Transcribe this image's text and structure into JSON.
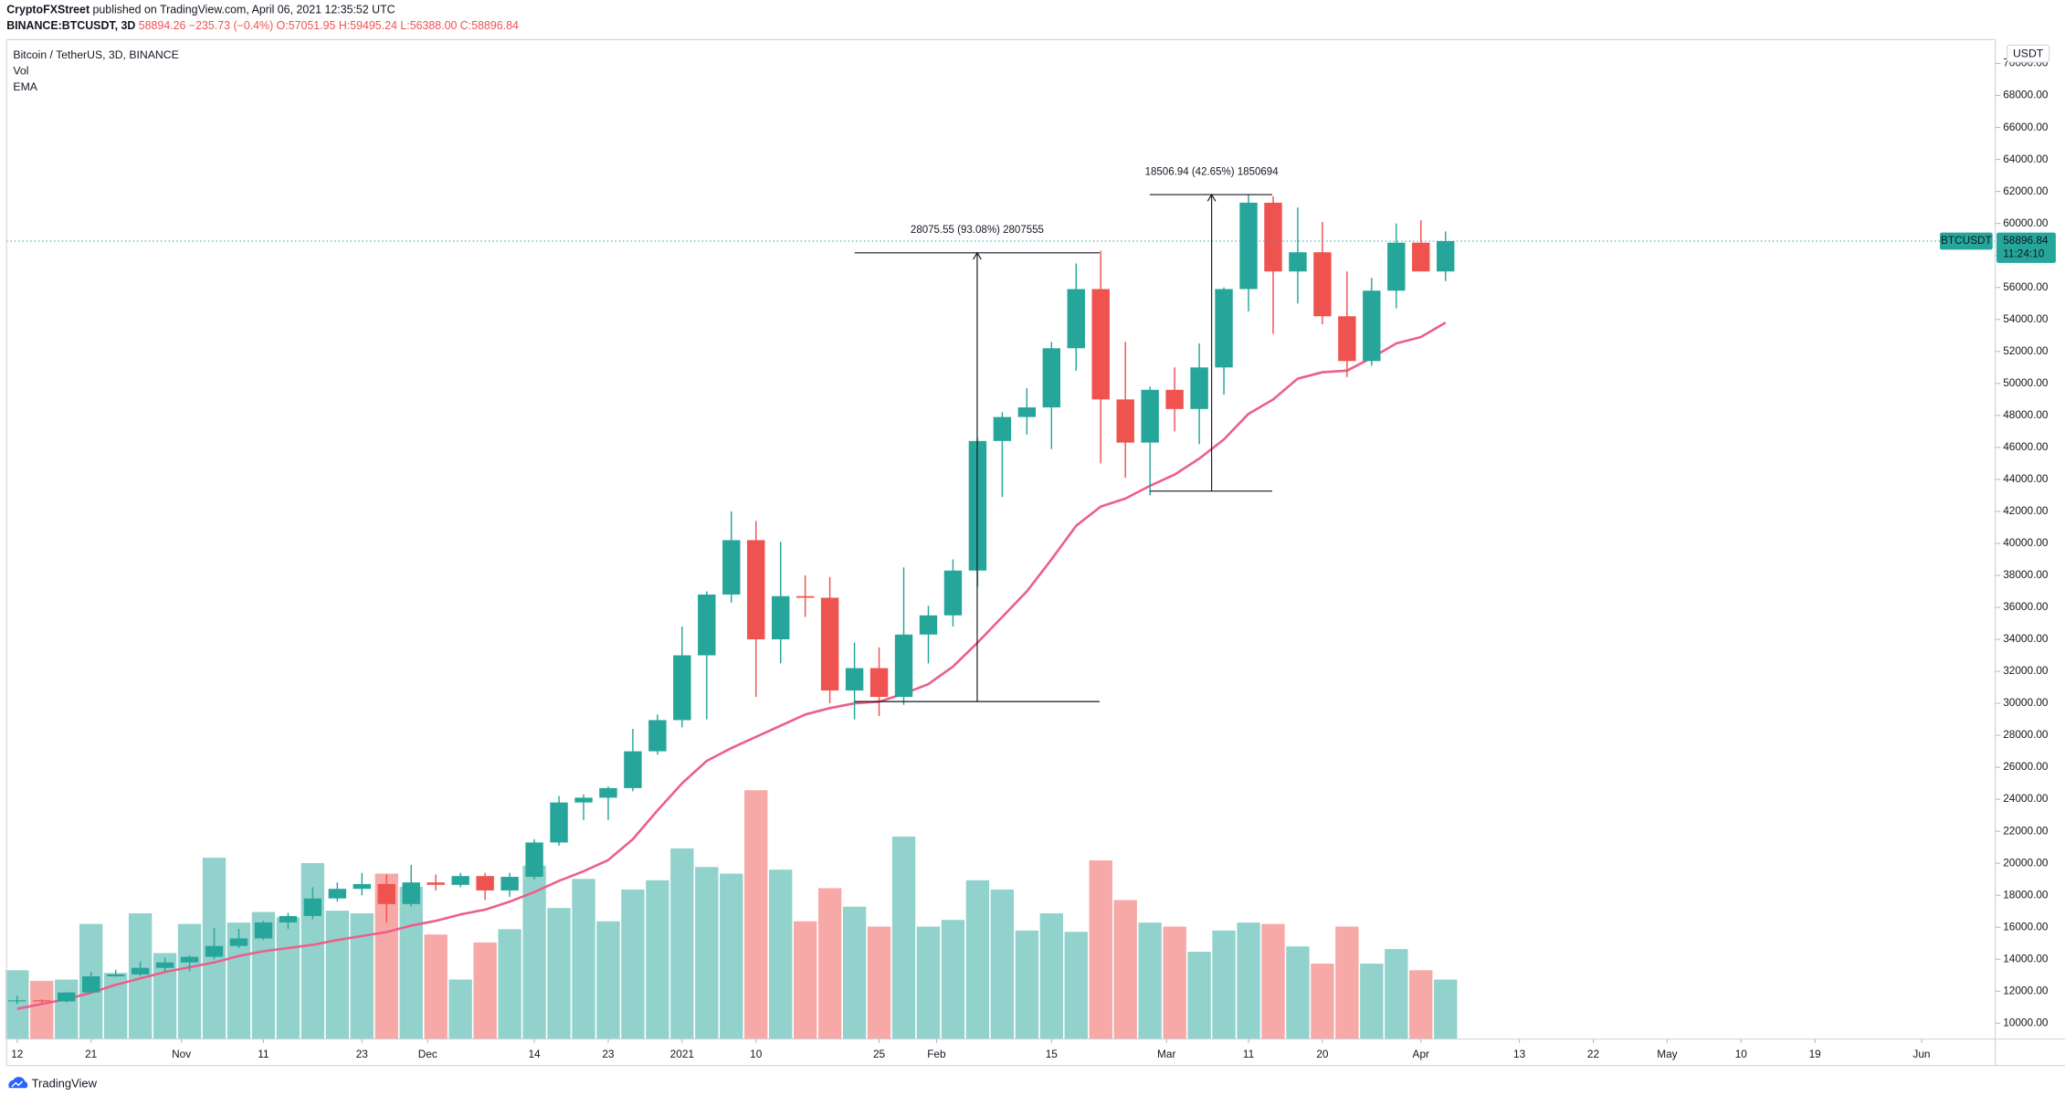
{
  "header": {
    "publisher": "CryptoFXStreet",
    "published": "published on TradingView.com, April 06, 2021 12:35:52 UTC",
    "symbol": "BINANCE:BTCUSDT, 3D",
    "quote": "58894.26 −235.73 (−0.4%) O:57051.95 H:59495.24 L:56388.00 C:58896.84"
  },
  "footer": {
    "brand": "TradingView"
  },
  "chart_data": {
    "type": "candlestick",
    "title": "Bitcoin / TetherUS, 3D, BINANCE",
    "currency": "USDT",
    "symbol_tag": "BTCUSDT",
    "countdown": "11:24:10",
    "grid": false,
    "up_color": "#26a69a",
    "down_color": "#ef5350",
    "open": [
      11380,
      11430,
      11360,
      11920,
      12930,
      13050,
      13460,
      13800,
      14150,
      14830,
      15300,
      16300,
      16700,
      17800,
      18400,
      18700,
      17450,
      18800,
      18650,
      19200,
      18300,
      19150,
      21300,
      23800,
      24100,
      24700,
      27000,
      28950,
      33000,
      36800,
      40200,
      34000,
      36700,
      36600,
      30800,
      32200,
      30400,
      34300,
      35500,
      38300,
      46400,
      47900,
      48500,
      52200,
      55900,
      49000,
      46300,
      49600,
      48400,
      51000,
      55900,
      61300,
      57000,
      58200,
      54200,
      51400,
      55800,
      58800,
      57000
    ],
    "high": [
      11720,
      11500,
      11950,
      13200,
      13350,
      13860,
      14100,
      14250,
      15950,
      15900,
      16400,
      16900,
      18500,
      18800,
      19400,
      19300,
      19900,
      19300,
      19400,
      19400,
      19400,
      21500,
      24200,
      24300,
      24800,
      28400,
      29300,
      34800,
      37000,
      42000,
      41400,
      40100,
      38000,
      37900,
      33800,
      33500,
      38500,
      36100,
      39000,
      46600,
      48200,
      49700,
      52600,
      57500,
      58300,
      52600,
      49800,
      51000,
      52500,
      56000,
      61800,
      61700,
      61000,
      60100,
      57000,
      56600,
      60000,
      60200,
      59500
    ],
    "low": [
      11200,
      11250,
      11300,
      11900,
      12900,
      12950,
      13200,
      13250,
      14000,
      14700,
      15200,
      15900,
      16500,
      17600,
      18000,
      16300,
      17300,
      18300,
      18500,
      17700,
      17900,
      19000,
      21100,
      22700,
      22700,
      24500,
      26800,
      28500,
      29000,
      36300,
      30400,
      32500,
      35400,
      30000,
      29000,
      29200,
      29900,
      32500,
      34800,
      37300,
      42900,
      46800,
      45900,
      50800,
      45000,
      44100,
      43000,
      47000,
      46200,
      49300,
      54500,
      53100,
      55000,
      53700,
      50400,
      51100,
      54700,
      57100,
      56400
    ],
    "close": [
      11430,
      11360,
      11920,
      12930,
      13050,
      13460,
      13800,
      14150,
      14830,
      15300,
      16300,
      16700,
      17800,
      18400,
      18700,
      17450,
      18800,
      18650,
      19200,
      18300,
      19150,
      21300,
      23800,
      24100,
      24700,
      27000,
      28950,
      33000,
      36800,
      40200,
      34000,
      36700,
      36600,
      30800,
      32200,
      30400,
      34300,
      35500,
      38300,
      46400,
      47900,
      48500,
      52200,
      55900,
      49000,
      46300,
      49600,
      48400,
      51000,
      55900,
      61300,
      57000,
      58200,
      54200,
      51400,
      55800,
      58800,
      57000,
      58896.84
    ],
    "volume": {
      "name": "Vol",
      "up_color": "#92d2cc",
      "down_color": "#f7a9a7",
      "lim": [
        0,
        200
      ],
      "values": [
        52,
        44,
        45,
        87,
        50,
        95,
        65,
        87,
        137,
        88,
        96,
        92,
        133,
        97,
        95,
        125,
        115,
        79,
        45,
        73,
        83,
        131,
        99,
        121,
        89,
        113,
        120,
        144,
        130,
        125,
        188,
        128,
        89,
        114,
        100,
        85,
        153,
        85,
        90,
        120,
        113,
        82,
        95,
        81,
        135,
        105,
        88,
        85,
        66,
        82,
        88,
        87,
        70,
        57,
        85,
        57,
        68,
        52,
        45
      ]
    },
    "ema": {
      "name": "EMA",
      "color": "#ec5f8a",
      "values": [
        10900,
        11200,
        11500,
        11900,
        12400,
        12800,
        13200,
        13500,
        13800,
        14200,
        14500,
        14700,
        14900,
        15200,
        15450,
        15700,
        16100,
        16400,
        16800,
        17100,
        17600,
        18200,
        18900,
        19500,
        20200,
        21500,
        23300,
        25000,
        26400,
        27200,
        27900,
        28600,
        29300,
        29700,
        30000,
        30100,
        30600,
        31200,
        32300,
        33800,
        35400,
        37000,
        39000,
        41100,
        42300,
        42800,
        43600,
        44300,
        45300,
        46500,
        48100,
        49000,
        50300,
        50700,
        50800,
        51600,
        52500,
        52900,
        53800
      ]
    },
    "measures": [
      {
        "label": "28075.55 (93.08%) 2807555"
      },
      {
        "label": "18506.94 (42.65%) 1850694"
      }
    ],
    "xlim": [
      -0.43,
      80.32
    ],
    "xticks": [
      {
        "value": 0,
        "label": "12"
      },
      {
        "value": 3,
        "label": "21"
      },
      {
        "value": 6.67,
        "label": "Nov"
      },
      {
        "value": 10,
        "label": "11"
      },
      {
        "value": 14,
        "label": "23"
      },
      {
        "value": 16.67,
        "label": "Dec"
      },
      {
        "value": 21,
        "label": "14"
      },
      {
        "value": 24,
        "label": "23"
      },
      {
        "value": 27,
        "label": "2021"
      },
      {
        "value": 30,
        "label": "10"
      },
      {
        "value": 35,
        "label": "25"
      },
      {
        "value": 37.33,
        "label": "Feb"
      },
      {
        "value": 42,
        "label": "15"
      },
      {
        "value": 46.67,
        "label": "Mar"
      },
      {
        "value": 50,
        "label": "11"
      },
      {
        "value": 53,
        "label": "20"
      },
      {
        "value": 57,
        "label": "Apr"
      },
      {
        "value": 61,
        "label": "13"
      },
      {
        "value": 64,
        "label": "22"
      },
      {
        "value": 67,
        "label": "May"
      },
      {
        "value": 70,
        "label": "10"
      },
      {
        "value": 73,
        "label": "19"
      },
      {
        "value": 77.33,
        "label": "Jun"
      }
    ],
    "ylim": [
      9007,
      71490
    ],
    "yticks": [
      {
        "value": 10000,
        "label": "10000.00"
      },
      {
        "value": 12000,
        "label": "12000.00"
      },
      {
        "value": 14000,
        "label": "14000.00"
      },
      {
        "value": 16000,
        "label": "16000.00"
      },
      {
        "value": 18000,
        "label": "18000.00"
      },
      {
        "value": 20000,
        "label": "20000.00"
      },
      {
        "value": 22000,
        "label": "22000.00"
      },
      {
        "value": 24000,
        "label": "24000.00"
      },
      {
        "value": 26000,
        "label": "26000.00"
      },
      {
        "value": 28000,
        "label": "28000.00"
      },
      {
        "value": 30000,
        "label": "30000.00"
      },
      {
        "value": 32000,
        "label": "32000.00"
      },
      {
        "value": 34000,
        "label": "34000.00"
      },
      {
        "value": 36000,
        "label": "36000.00"
      },
      {
        "value": 38000,
        "label": "38000.00"
      },
      {
        "value": 40000,
        "label": "40000.00"
      },
      {
        "value": 42000,
        "label": "42000.00"
      },
      {
        "value": 44000,
        "label": "44000.00"
      },
      {
        "value": 46000,
        "label": "46000.00"
      },
      {
        "value": 48000,
        "label": "48000.00"
      },
      {
        "value": 50000,
        "label": "50000.00"
      },
      {
        "value": 52000,
        "label": "52000.00"
      },
      {
        "value": 54000,
        "label": "54000.00"
      },
      {
        "value": 56000,
        "label": "56000.00"
      },
      {
        "value": 58000,
        "label": "58000.00"
      },
      {
        "value": 60000,
        "label": "60000.00"
      },
      {
        "value": 62000,
        "label": "62000.00"
      },
      {
        "value": 64000,
        "label": "64000.00"
      },
      {
        "value": 66000,
        "label": "66000.00"
      },
      {
        "value": 68000,
        "label": "68000.00"
      },
      {
        "value": 70000,
        "label": "70000.00"
      }
    ]
  }
}
